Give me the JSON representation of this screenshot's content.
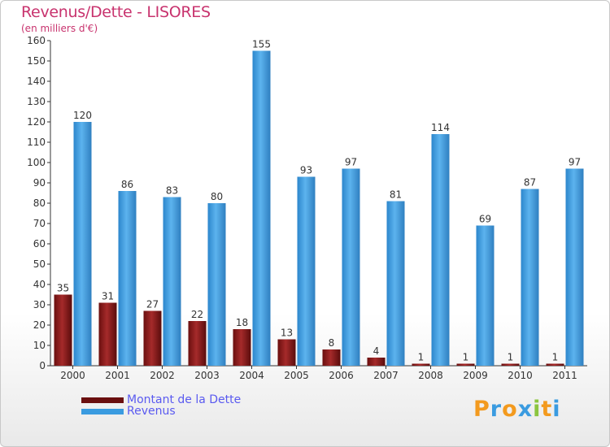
{
  "title": "Revenus/Dette - LISORES",
  "subtitle": "(en milliers d'€)",
  "chart_data": {
    "type": "bar",
    "categories": [
      "2000",
      "2001",
      "2002",
      "2003",
      "2004",
      "2005",
      "2006",
      "2007",
      "2008",
      "2009",
      "2010",
      "2011"
    ],
    "series": [
      {
        "name": "Montant de la Dette",
        "color": "#8b1f1f",
        "values": [
          35,
          31,
          27,
          22,
          18,
          13,
          8,
          4,
          1,
          1,
          1,
          1
        ]
      },
      {
        "name": "Revenus",
        "color": "#3a9be0",
        "values": [
          120,
          86,
          83,
          80,
          155,
          93,
          97,
          81,
          114,
          69,
          87,
          97
        ]
      }
    ],
    "ylim": [
      0,
      160
    ],
    "yticks": [
      0,
      10,
      20,
      30,
      40,
      50,
      60,
      70,
      80,
      90,
      100,
      110,
      120,
      130,
      140,
      150,
      160
    ],
    "grid": false,
    "legend_position": "bottom-left"
  },
  "legend": {
    "debt_label": "Montant de la Dette",
    "revenue_label": "Revenus"
  },
  "logo": {
    "letters": [
      "P",
      "r",
      "o",
      "x",
      "i",
      "t",
      "i"
    ],
    "colors": [
      "#f39a1e",
      "#3a9be0",
      "#f39a1e",
      "#3a9be0",
      "#8bc53f",
      "#f39a1e",
      "#3a9be0"
    ]
  }
}
